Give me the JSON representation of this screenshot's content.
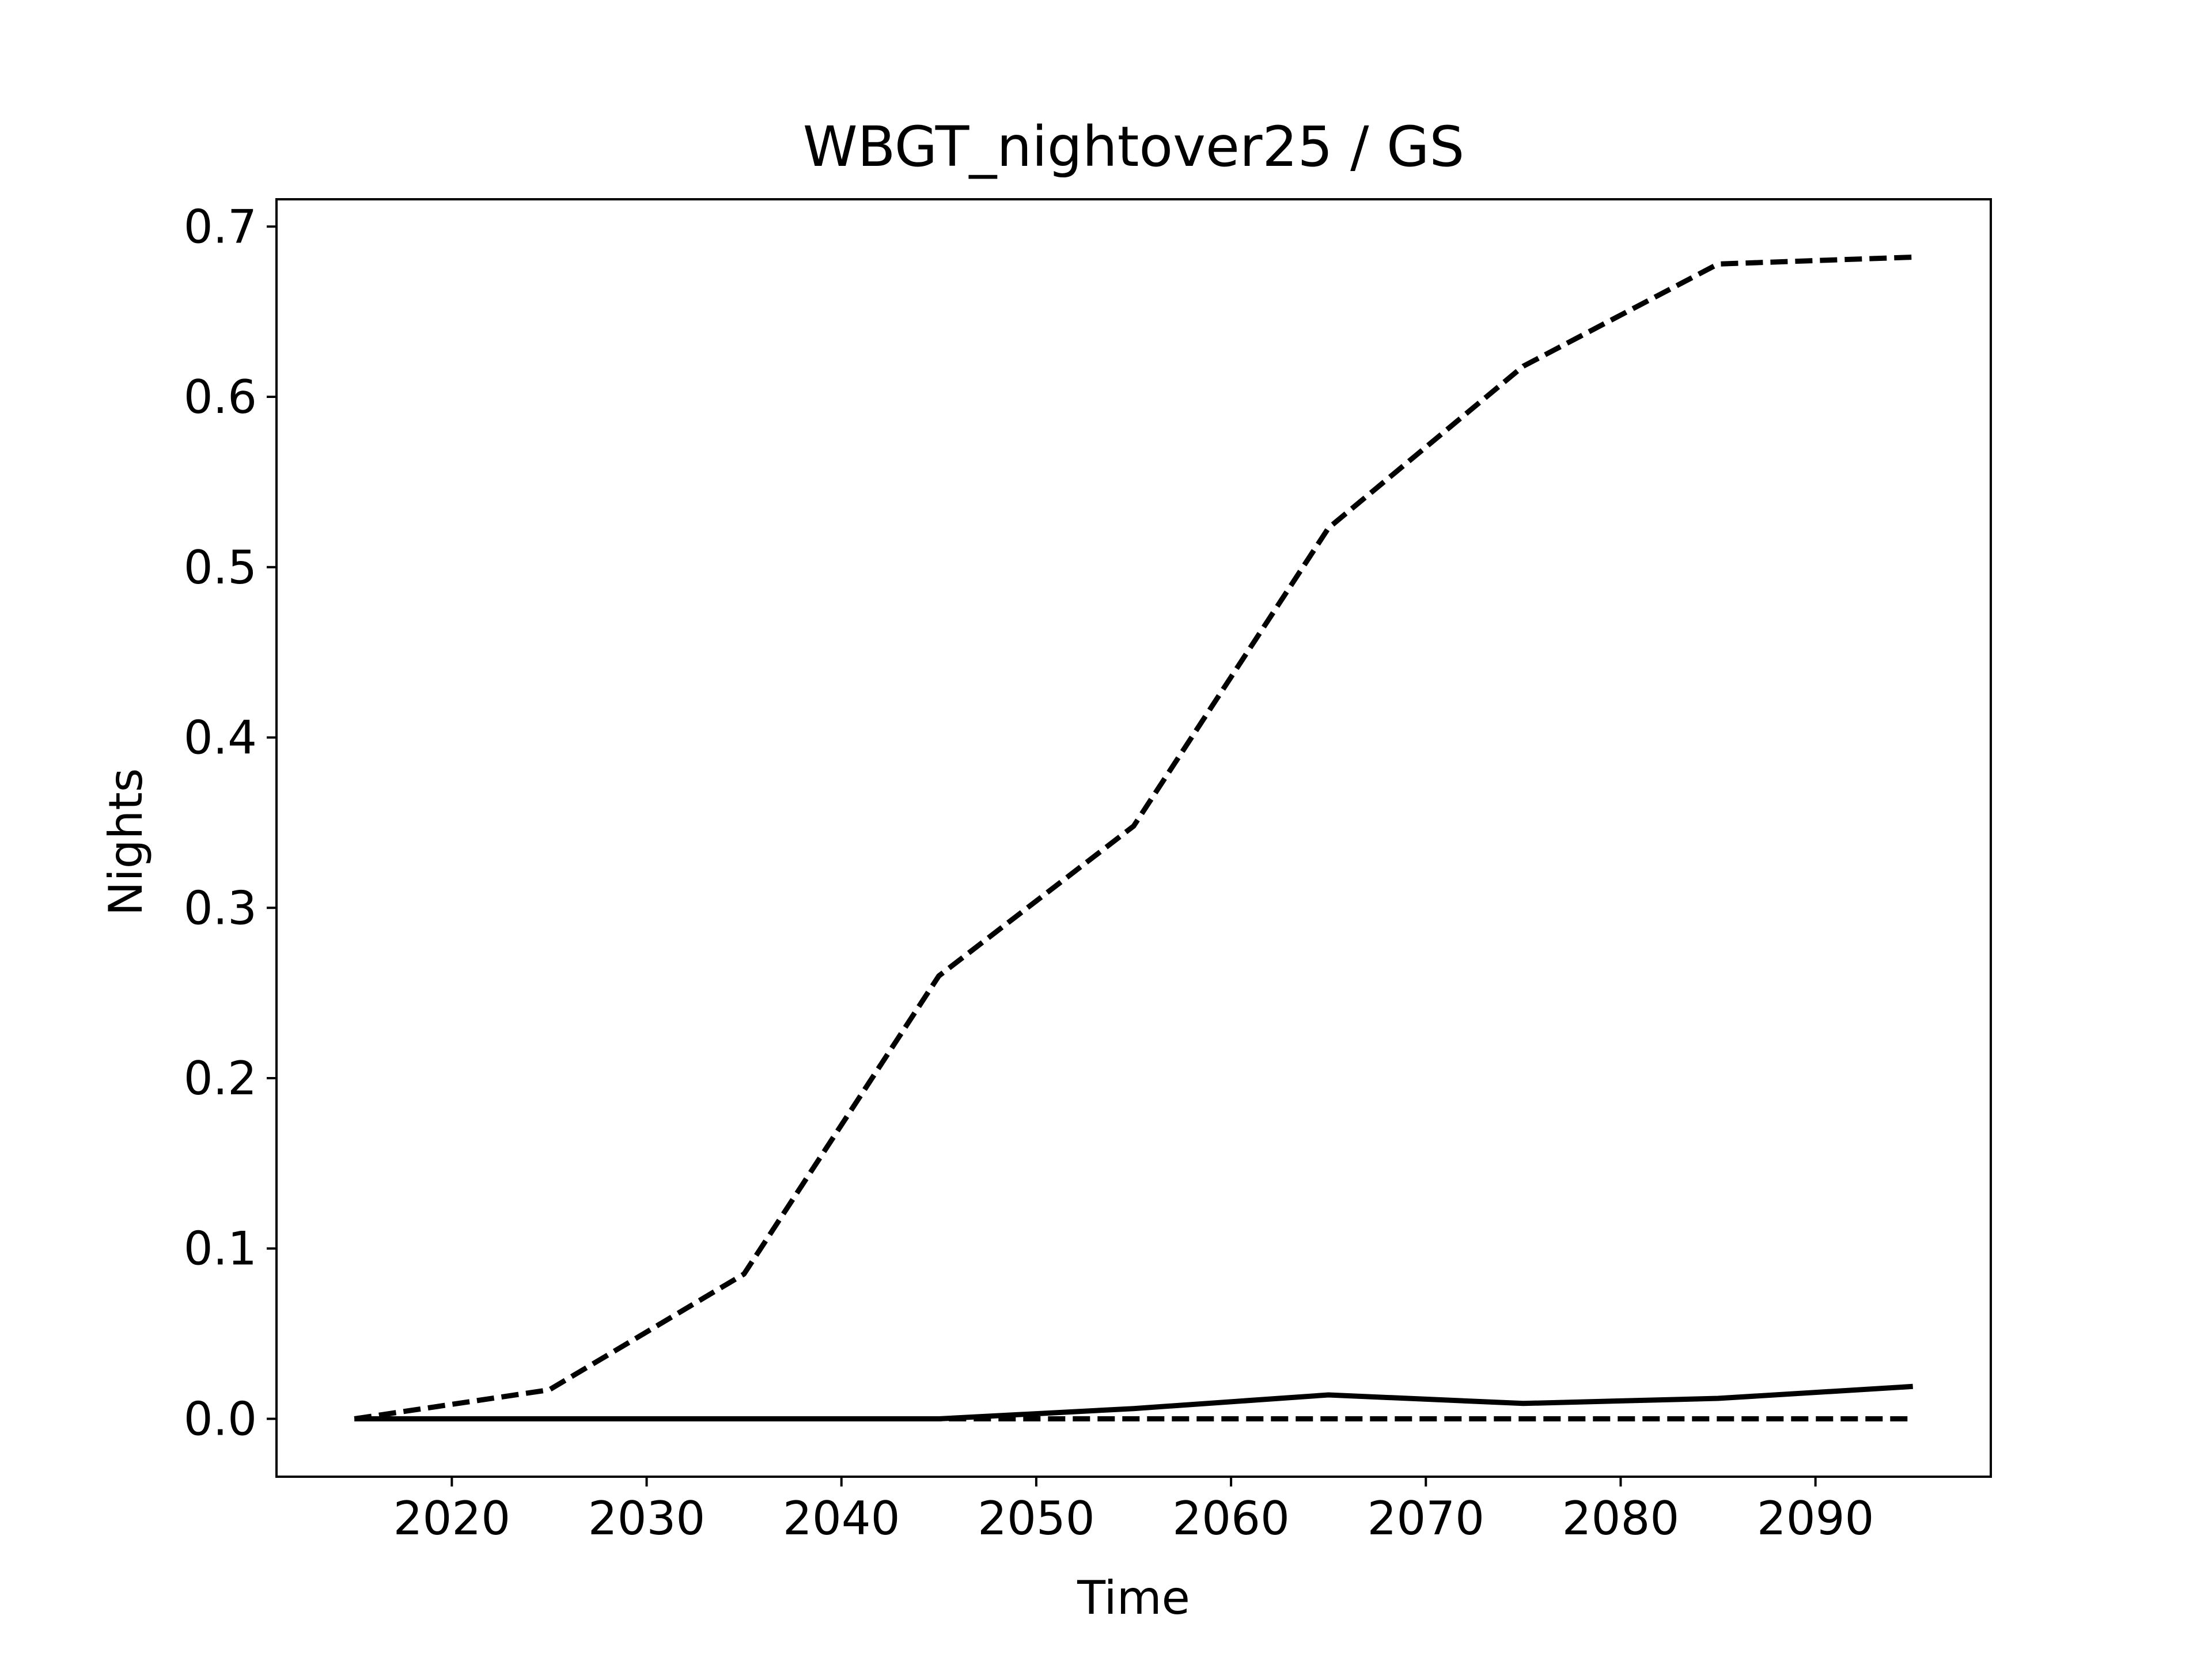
{
  "chart_data": {
    "type": "line",
    "title": "WBGT_nightover25 / GS",
    "xlabel": "Time",
    "ylabel": "Nights",
    "xlim": [
      2011,
      2099
    ],
    "ylim": [
      -0.034,
      0.716
    ],
    "xticks": [
      2020,
      2030,
      2040,
      2050,
      2060,
      2070,
      2080,
      2090
    ],
    "xtick_labels": [
      "2020",
      "2030",
      "2040",
      "2050",
      "2060",
      "2070",
      "2080",
      "2090"
    ],
    "yticks": [
      0.0,
      0.1,
      0.2,
      0.3,
      0.4,
      0.5,
      0.6,
      0.7
    ],
    "ytick_labels": [
      "0.0",
      "0.1",
      "0.2",
      "0.3",
      "0.4",
      "0.5",
      "0.6",
      "0.7"
    ],
    "grid": false,
    "legend": "none",
    "x": [
      2015,
      2025,
      2035,
      2045,
      2055,
      2065,
      2075,
      2085,
      2095
    ],
    "series": [
      {
        "style": "dashed",
        "color": "#000000",
        "values": [
          0.0,
          0.017,
          0.085,
          0.26,
          0.348,
          0.523,
          0.618,
          0.678,
          0.682
        ]
      },
      {
        "style": "solid",
        "color": "#000000",
        "values": [
          0.0,
          0.0,
          0.0,
          0.0,
          0.006,
          0.014,
          0.009,
          0.012,
          0.019
        ]
      },
      {
        "style": "dashed",
        "color": "#000000",
        "values": [
          0.0,
          0.0,
          0.0,
          0.0,
          0.0,
          0.0,
          0.0,
          0.0,
          0.0
        ]
      }
    ]
  }
}
